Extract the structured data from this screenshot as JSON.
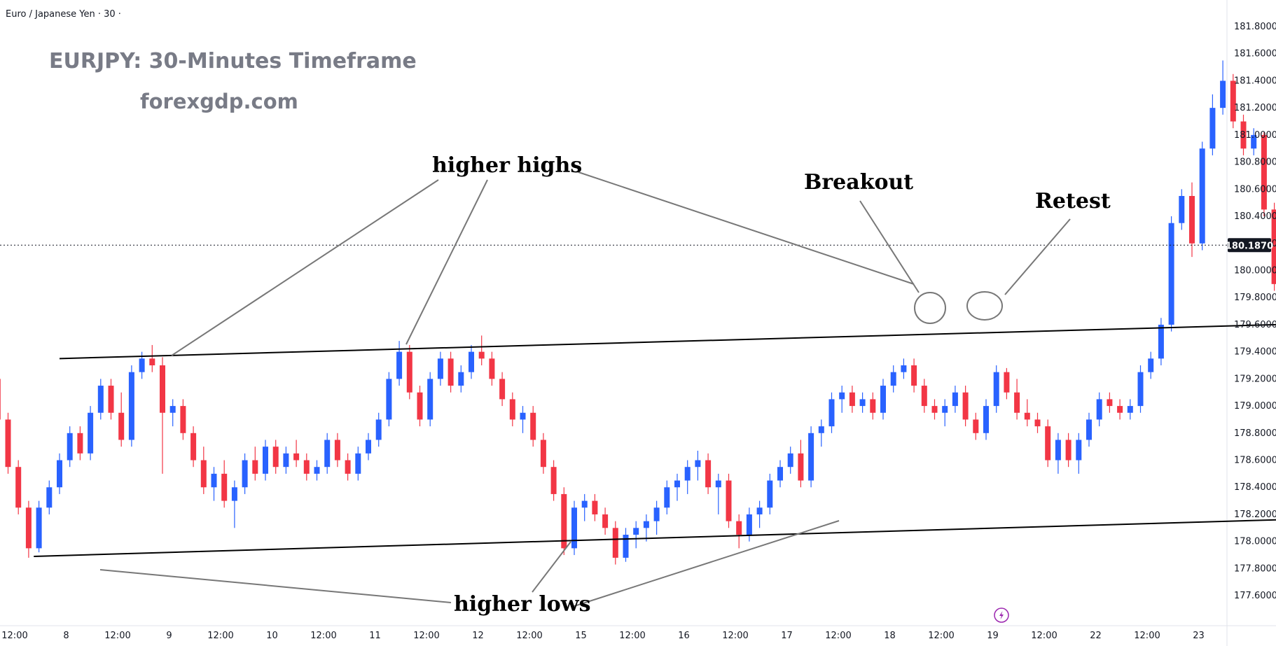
{
  "header": {
    "symbol_label": "Euro / Japanese Yen · 30 ·",
    "title": "EURJPY:  30-Minutes Timeframe",
    "site": "forexgdp.com"
  },
  "annotations": {
    "higher_highs": "higher highs",
    "higher_lows": "higher lows",
    "breakout": "Breakout",
    "retest": "Retest"
  },
  "colors": {
    "up": "#2962ff",
    "down": "#f23645",
    "trendline": "#000000",
    "pointer": "#777777",
    "price_tag_bg": "#131722",
    "grid_axis": "#e0e3eb"
  },
  "icons": {
    "lightning": "lightning-icon"
  },
  "chart_data": {
    "type": "candlestick",
    "title": "EURJPY:  30-Minutes Timeframe",
    "y_axis_position": "right",
    "y_ticks": [
      "181.8000",
      "181.6000",
      "181.4000",
      "181.2000",
      "181.0000",
      "180.8000",
      "180.6000",
      "180.4000",
      "180.2000",
      "180.0000",
      "179.8000",
      "179.6000",
      "179.4000",
      "179.2000",
      "179.0000",
      "178.8000",
      "178.6000",
      "178.4000",
      "178.2000",
      "178.0000",
      "177.8000",
      "177.6000"
    ],
    "x_ticks": [
      "12:00",
      "8",
      "12:00",
      "9",
      "12:00",
      "10",
      "12:00",
      "11",
      "12:00",
      "12",
      "12:00",
      "15",
      "12:00",
      "16",
      "12:00",
      "17",
      "12:00",
      "18",
      "12:00",
      "19",
      "12:00",
      "22",
      "12:00",
      "23"
    ],
    "ylim": [
      177.5,
      181.9
    ],
    "current_price": 180.187,
    "current_price_label": "180.1870",
    "trendlines": [
      {
        "name": "resistance",
        "from": {
          "x": 0.0,
          "y": 179.35
        },
        "to": {
          "x": 25.0,
          "y": 179.88
        }
      },
      {
        "name": "support",
        "from": {
          "x": -0.25,
          "y": 177.89
        },
        "to": {
          "x": 23.0,
          "y": 178.41
        }
      }
    ],
    "ohlc": [
      {
        "x": -1.9,
        "o": 181.3,
        "h": 181.32,
        "l": 181.15,
        "c": 181.22
      },
      {
        "x": -1.8,
        "o": 181.22,
        "h": 181.25,
        "l": 181.0,
        "c": 181.05
      },
      {
        "x": -1.7,
        "o": 181.05,
        "h": 181.1,
        "l": 180.75,
        "c": 180.8
      },
      {
        "x": -1.6,
        "o": 180.8,
        "h": 180.9,
        "l": 180.25,
        "c": 180.3
      },
      {
        "x": -1.5,
        "o": 180.3,
        "h": 180.35,
        "l": 179.25,
        "c": 179.3
      },
      {
        "x": -1.4,
        "o": 179.3,
        "h": 179.7,
        "l": 179.25,
        "c": 179.65
      },
      {
        "x": -1.3,
        "o": 179.65,
        "h": 179.9,
        "l": 179.6,
        "c": 179.85
      },
      {
        "x": -1.2,
        "o": 179.85,
        "h": 179.9,
        "l": 179.55,
        "c": 179.6
      },
      {
        "x": -1.1,
        "o": 179.6,
        "h": 179.7,
        "l": 179.45,
        "c": 179.5
      },
      {
        "x": -1.0,
        "o": 179.5,
        "h": 179.55,
        "l": 179.4,
        "c": 179.45
      },
      {
        "x": -0.9,
        "o": 179.45,
        "h": 179.5,
        "l": 179.38,
        "c": 179.42
      },
      {
        "x": -0.8,
        "o": 179.42,
        "h": 179.45,
        "l": 179.35,
        "c": 179.4
      },
      {
        "x": -0.7,
        "o": 179.4,
        "h": 179.42,
        "l": 179.15,
        "c": 179.2
      },
      {
        "x": -0.6,
        "o": 179.2,
        "h": 179.25,
        "l": 178.85,
        "c": 178.9
      },
      {
        "x": -0.5,
        "o": 178.9,
        "h": 178.95,
        "l": 178.5,
        "c": 178.55
      },
      {
        "x": -0.4,
        "o": 178.55,
        "h": 178.6,
        "l": 178.2,
        "c": 178.25
      },
      {
        "x": -0.3,
        "o": 178.25,
        "h": 178.3,
        "l": 177.88,
        "c": 177.95
      },
      {
        "x": -0.2,
        "o": 177.95,
        "h": 178.3,
        "l": 177.92,
        "c": 178.25
      },
      {
        "x": -0.1,
        "o": 178.25,
        "h": 178.45,
        "l": 178.2,
        "c": 178.4
      },
      {
        "x": 0.0,
        "o": 178.4,
        "h": 178.65,
        "l": 178.35,
        "c": 178.6
      },
      {
        "x": 0.1,
        "o": 178.6,
        "h": 178.85,
        "l": 178.55,
        "c": 178.8
      },
      {
        "x": 0.2,
        "o": 178.8,
        "h": 178.85,
        "l": 178.6,
        "c": 178.65
      },
      {
        "x": 0.3,
        "o": 178.65,
        "h": 179.0,
        "l": 178.6,
        "c": 178.95
      },
      {
        "x": 0.4,
        "o": 178.95,
        "h": 179.2,
        "l": 178.9,
        "c": 179.15
      },
      {
        "x": 0.5,
        "o": 179.15,
        "h": 179.2,
        "l": 178.9,
        "c": 178.95
      },
      {
        "x": 0.6,
        "o": 178.95,
        "h": 179.1,
        "l": 178.7,
        "c": 178.75
      },
      {
        "x": 0.7,
        "o": 178.75,
        "h": 179.3,
        "l": 178.7,
        "c": 179.25
      },
      {
        "x": 0.8,
        "o": 179.25,
        "h": 179.4,
        "l": 179.2,
        "c": 179.35
      },
      {
        "x": 0.9,
        "o": 179.35,
        "h": 179.45,
        "l": 179.25,
        "c": 179.3
      },
      {
        "x": 1.0,
        "o": 179.3,
        "h": 179.36,
        "l": 178.5,
        "c": 178.95
      },
      {
        "x": 1.1,
        "o": 178.95,
        "h": 179.05,
        "l": 178.85,
        "c": 179.0
      },
      {
        "x": 1.2,
        "o": 179.0,
        "h": 179.05,
        "l": 178.75,
        "c": 178.8
      },
      {
        "x": 1.3,
        "o": 178.8,
        "h": 178.85,
        "l": 178.55,
        "c": 178.6
      },
      {
        "x": 1.4,
        "o": 178.6,
        "h": 178.7,
        "l": 178.35,
        "c": 178.4
      },
      {
        "x": 1.5,
        "o": 178.4,
        "h": 178.55,
        "l": 178.3,
        "c": 178.5
      },
      {
        "x": 1.6,
        "o": 178.5,
        "h": 178.6,
        "l": 178.25,
        "c": 178.3
      },
      {
        "x": 1.7,
        "o": 178.3,
        "h": 178.45,
        "l": 178.1,
        "c": 178.4
      },
      {
        "x": 1.8,
        "o": 178.4,
        "h": 178.65,
        "l": 178.35,
        "c": 178.6
      },
      {
        "x": 1.9,
        "o": 178.6,
        "h": 178.7,
        "l": 178.45,
        "c": 178.5
      },
      {
        "x": 2.0,
        "o": 178.5,
        "h": 178.75,
        "l": 178.45,
        "c": 178.7
      },
      {
        "x": 2.1,
        "o": 178.7,
        "h": 178.75,
        "l": 178.5,
        "c": 178.55
      },
      {
        "x": 2.2,
        "o": 178.55,
        "h": 178.7,
        "l": 178.5,
        "c": 178.65
      },
      {
        "x": 2.3,
        "o": 178.65,
        "h": 178.75,
        "l": 178.55,
        "c": 178.6
      },
      {
        "x": 2.4,
        "o": 178.6,
        "h": 178.65,
        "l": 178.45,
        "c": 178.5
      },
      {
        "x": 2.5,
        "o": 178.5,
        "h": 178.6,
        "l": 178.45,
        "c": 178.55
      },
      {
        "x": 2.6,
        "o": 178.55,
        "h": 178.8,
        "l": 178.5,
        "c": 178.75
      },
      {
        "x": 2.7,
        "o": 178.75,
        "h": 178.8,
        "l": 178.55,
        "c": 178.6
      },
      {
        "x": 2.8,
        "o": 178.6,
        "h": 178.65,
        "l": 178.45,
        "c": 178.5
      },
      {
        "x": 2.9,
        "o": 178.5,
        "h": 178.7,
        "l": 178.45,
        "c": 178.65
      },
      {
        "x": 3.0,
        "o": 178.65,
        "h": 178.8,
        "l": 178.6,
        "c": 178.75
      },
      {
        "x": 3.1,
        "o": 178.75,
        "h": 178.95,
        "l": 178.7,
        "c": 178.9
      },
      {
        "x": 3.2,
        "o": 178.9,
        "h": 179.25,
        "l": 178.85,
        "c": 179.2
      },
      {
        "x": 3.3,
        "o": 179.2,
        "h": 179.48,
        "l": 179.15,
        "c": 179.4
      },
      {
        "x": 3.4,
        "o": 179.4,
        "h": 179.45,
        "l": 179.05,
        "c": 179.1
      },
      {
        "x": 3.5,
        "o": 179.1,
        "h": 179.15,
        "l": 178.85,
        "c": 178.9
      },
      {
        "x": 3.6,
        "o": 178.9,
        "h": 179.25,
        "l": 178.85,
        "c": 179.2
      },
      {
        "x": 3.7,
        "o": 179.2,
        "h": 179.4,
        "l": 179.15,
        "c": 179.35
      },
      {
        "x": 3.8,
        "o": 179.35,
        "h": 179.4,
        "l": 179.1,
        "c": 179.15
      },
      {
        "x": 3.9,
        "o": 179.15,
        "h": 179.3,
        "l": 179.1,
        "c": 179.25
      },
      {
        "x": 4.0,
        "o": 179.25,
        "h": 179.45,
        "l": 179.2,
        "c": 179.4
      },
      {
        "x": 4.1,
        "o": 179.4,
        "h": 179.52,
        "l": 179.3,
        "c": 179.35
      },
      {
        "x": 4.2,
        "o": 179.35,
        "h": 179.4,
        "l": 179.15,
        "c": 179.2
      },
      {
        "x": 4.3,
        "o": 179.2,
        "h": 179.25,
        "l": 179.0,
        "c": 179.05
      },
      {
        "x": 4.4,
        "o": 179.05,
        "h": 179.1,
        "l": 178.85,
        "c": 178.9
      },
      {
        "x": 4.5,
        "o": 178.9,
        "h": 179.0,
        "l": 178.8,
        "c": 178.95
      },
      {
        "x": 4.6,
        "o": 178.95,
        "h": 179.0,
        "l": 178.7,
        "c": 178.75
      },
      {
        "x": 4.7,
        "o": 178.75,
        "h": 178.8,
        "l": 178.5,
        "c": 178.55
      },
      {
        "x": 4.8,
        "o": 178.55,
        "h": 178.6,
        "l": 178.3,
        "c": 178.35
      },
      {
        "x": 4.9,
        "o": 178.35,
        "h": 178.4,
        "l": 177.9,
        "c": 177.95
      },
      {
        "x": 5.0,
        "o": 177.95,
        "h": 178.3,
        "l": 177.9,
        "c": 178.25
      },
      {
        "x": 5.1,
        "o": 178.25,
        "h": 178.35,
        "l": 178.15,
        "c": 178.3
      },
      {
        "x": 5.2,
        "o": 178.3,
        "h": 178.35,
        "l": 178.15,
        "c": 178.2
      },
      {
        "x": 5.3,
        "o": 178.2,
        "h": 178.25,
        "l": 178.05,
        "c": 178.1
      },
      {
        "x": 5.4,
        "o": 178.1,
        "h": 178.15,
        "l": 177.83,
        "c": 177.88
      },
      {
        "x": 5.5,
        "o": 177.88,
        "h": 178.1,
        "l": 177.85,
        "c": 178.05
      },
      {
        "x": 5.6,
        "o": 178.05,
        "h": 178.15,
        "l": 177.95,
        "c": 178.1
      },
      {
        "x": 5.7,
        "o": 178.1,
        "h": 178.2,
        "l": 178.0,
        "c": 178.15
      },
      {
        "x": 5.8,
        "o": 178.15,
        "h": 178.3,
        "l": 178.05,
        "c": 178.25
      },
      {
        "x": 5.9,
        "o": 178.25,
        "h": 178.45,
        "l": 178.2,
        "c": 178.4
      },
      {
        "x": 6.0,
        "o": 178.4,
        "h": 178.5,
        "l": 178.3,
        "c": 178.45
      },
      {
        "x": 6.1,
        "o": 178.45,
        "h": 178.6,
        "l": 178.35,
        "c": 178.55
      },
      {
        "x": 6.2,
        "o": 178.55,
        "h": 178.67,
        "l": 178.45,
        "c": 178.6
      },
      {
        "x": 6.3,
        "o": 178.6,
        "h": 178.65,
        "l": 178.35,
        "c": 178.4
      },
      {
        "x": 6.4,
        "o": 178.4,
        "h": 178.5,
        "l": 178.2,
        "c": 178.45
      },
      {
        "x": 6.5,
        "o": 178.45,
        "h": 178.5,
        "l": 178.1,
        "c": 178.15
      },
      {
        "x": 6.6,
        "o": 178.15,
        "h": 178.2,
        "l": 177.95,
        "c": 178.05
      },
      {
        "x": 6.7,
        "o": 178.05,
        "h": 178.25,
        "l": 178.0,
        "c": 178.2
      },
      {
        "x": 6.8,
        "o": 178.2,
        "h": 178.3,
        "l": 178.1,
        "c": 178.25
      },
      {
        "x": 6.9,
        "o": 178.25,
        "h": 178.5,
        "l": 178.2,
        "c": 178.45
      },
      {
        "x": 7.0,
        "o": 178.45,
        "h": 178.6,
        "l": 178.4,
        "c": 178.55
      },
      {
        "x": 7.1,
        "o": 178.55,
        "h": 178.7,
        "l": 178.5,
        "c": 178.65
      },
      {
        "x": 7.2,
        "o": 178.65,
        "h": 178.75,
        "l": 178.4,
        "c": 178.45
      },
      {
        "x": 7.3,
        "o": 178.45,
        "h": 178.85,
        "l": 178.4,
        "c": 178.8
      },
      {
        "x": 7.4,
        "o": 178.8,
        "h": 178.9,
        "l": 178.7,
        "c": 178.85
      },
      {
        "x": 7.5,
        "o": 178.85,
        "h": 179.1,
        "l": 178.8,
        "c": 179.05
      },
      {
        "x": 7.6,
        "o": 179.05,
        "h": 179.15,
        "l": 178.95,
        "c": 179.1
      },
      {
        "x": 7.7,
        "o": 179.1,
        "h": 179.15,
        "l": 178.95,
        "c": 179.0
      },
      {
        "x": 7.8,
        "o": 179.0,
        "h": 179.1,
        "l": 178.95,
        "c": 179.05
      },
      {
        "x": 7.9,
        "o": 179.05,
        "h": 179.1,
        "l": 178.9,
        "c": 178.95
      },
      {
        "x": 8.0,
        "o": 178.95,
        "h": 179.2,
        "l": 178.9,
        "c": 179.15
      },
      {
        "x": 8.1,
        "o": 179.15,
        "h": 179.3,
        "l": 179.1,
        "c": 179.25
      },
      {
        "x": 8.2,
        "o": 179.25,
        "h": 179.35,
        "l": 179.2,
        "c": 179.3
      },
      {
        "x": 8.3,
        "o": 179.3,
        "h": 179.35,
        "l": 179.1,
        "c": 179.15
      },
      {
        "x": 8.4,
        "o": 179.15,
        "h": 179.2,
        "l": 178.95,
        "c": 179.0
      },
      {
        "x": 8.5,
        "o": 179.0,
        "h": 179.05,
        "l": 178.9,
        "c": 178.95
      },
      {
        "x": 8.6,
        "o": 178.95,
        "h": 179.05,
        "l": 178.85,
        "c": 179.0
      },
      {
        "x": 8.7,
        "o": 179.0,
        "h": 179.15,
        "l": 178.95,
        "c": 179.1
      },
      {
        "x": 8.8,
        "o": 179.1,
        "h": 179.15,
        "l": 178.85,
        "c": 178.9
      },
      {
        "x": 8.9,
        "o": 178.9,
        "h": 178.95,
        "l": 178.75,
        "c": 178.8
      },
      {
        "x": 9.0,
        "o": 178.8,
        "h": 179.05,
        "l": 178.75,
        "c": 179.0
      },
      {
        "x": 9.1,
        "o": 179.0,
        "h": 179.3,
        "l": 178.95,
        "c": 179.25
      },
      {
        "x": 9.2,
        "o": 179.25,
        "h": 179.28,
        "l": 179.05,
        "c": 179.1
      },
      {
        "x": 9.3,
        "o": 179.1,
        "h": 179.2,
        "l": 178.9,
        "c": 178.95
      },
      {
        "x": 9.4,
        "o": 178.95,
        "h": 179.05,
        "l": 178.85,
        "c": 178.9
      },
      {
        "x": 9.5,
        "o": 178.9,
        "h": 178.95,
        "l": 178.8,
        "c": 178.85
      },
      {
        "x": 9.6,
        "o": 178.85,
        "h": 178.9,
        "l": 178.55,
        "c": 178.6
      },
      {
        "x": 9.7,
        "o": 178.6,
        "h": 178.8,
        "l": 178.5,
        "c": 178.75
      },
      {
        "x": 9.8,
        "o": 178.75,
        "h": 178.8,
        "l": 178.55,
        "c": 178.6
      },
      {
        "x": 9.9,
        "o": 178.6,
        "h": 178.8,
        "l": 178.5,
        "c": 178.75
      },
      {
        "x": 10.0,
        "o": 178.75,
        "h": 178.95,
        "l": 178.7,
        "c": 178.9
      },
      {
        "x": 10.1,
        "o": 178.9,
        "h": 179.1,
        "l": 178.85,
        "c": 179.05
      },
      {
        "x": 10.2,
        "o": 179.05,
        "h": 179.1,
        "l": 178.95,
        "c": 179.0
      },
      {
        "x": 10.3,
        "o": 179.0,
        "h": 179.05,
        "l": 178.9,
        "c": 178.95
      },
      {
        "x": 10.4,
        "o": 178.95,
        "h": 179.05,
        "l": 178.9,
        "c": 179.0
      },
      {
        "x": 10.5,
        "o": 179.0,
        "h": 179.3,
        "l": 178.95,
        "c": 179.25
      },
      {
        "x": 10.6,
        "o": 179.25,
        "h": 179.4,
        "l": 179.2,
        "c": 179.35
      },
      {
        "x": 10.7,
        "o": 179.35,
        "h": 179.65,
        "l": 179.3,
        "c": 179.6
      },
      {
        "x": 10.8,
        "o": 179.6,
        "h": 180.4,
        "l": 179.55,
        "c": 180.35
      },
      {
        "x": 10.9,
        "o": 180.35,
        "h": 180.6,
        "l": 180.3,
        "c": 180.55
      },
      {
        "x": 11.0,
        "o": 180.55,
        "h": 180.65,
        "l": 180.1,
        "c": 180.2
      },
      {
        "x": 11.1,
        "o": 180.2,
        "h": 180.95,
        "l": 180.15,
        "c": 180.9
      },
      {
        "x": 11.2,
        "o": 180.9,
        "h": 181.3,
        "l": 180.85,
        "c": 181.2
      },
      {
        "x": 11.3,
        "o": 181.2,
        "h": 181.55,
        "l": 181.15,
        "c": 181.4
      },
      {
        "x": 11.4,
        "o": 181.4,
        "h": 181.45,
        "l": 181.05,
        "c": 181.1
      },
      {
        "x": 11.5,
        "o": 181.1,
        "h": 181.15,
        "l": 180.85,
        "c": 180.9
      },
      {
        "x": 11.6,
        "o": 180.9,
        "h": 181.05,
        "l": 180.85,
        "c": 181.0
      },
      {
        "x": 11.7,
        "o": 181.0,
        "h": 181.02,
        "l": 180.4,
        "c": 180.45
      },
      {
        "x": 11.8,
        "o": 180.45,
        "h": 180.5,
        "l": 179.85,
        "c": 179.9
      },
      {
        "x": 11.9,
        "o": 179.9,
        "h": 179.95,
        "l": 179.75,
        "c": 179.8
      },
      {
        "x": 12.0,
        "o": 179.8,
        "h": 179.95,
        "l": 179.78,
        "c": 179.92
      },
      {
        "x": 12.1,
        "o": 179.92,
        "h": 180.0,
        "l": 179.88,
        "c": 179.98
      },
      {
        "x": 12.2,
        "o": 179.98,
        "h": 180.08,
        "l": 179.95,
        "c": 180.05
      },
      {
        "x": 12.3,
        "o": 180.05,
        "h": 180.23,
        "l": 180.0,
        "c": 180.187
      }
    ]
  }
}
